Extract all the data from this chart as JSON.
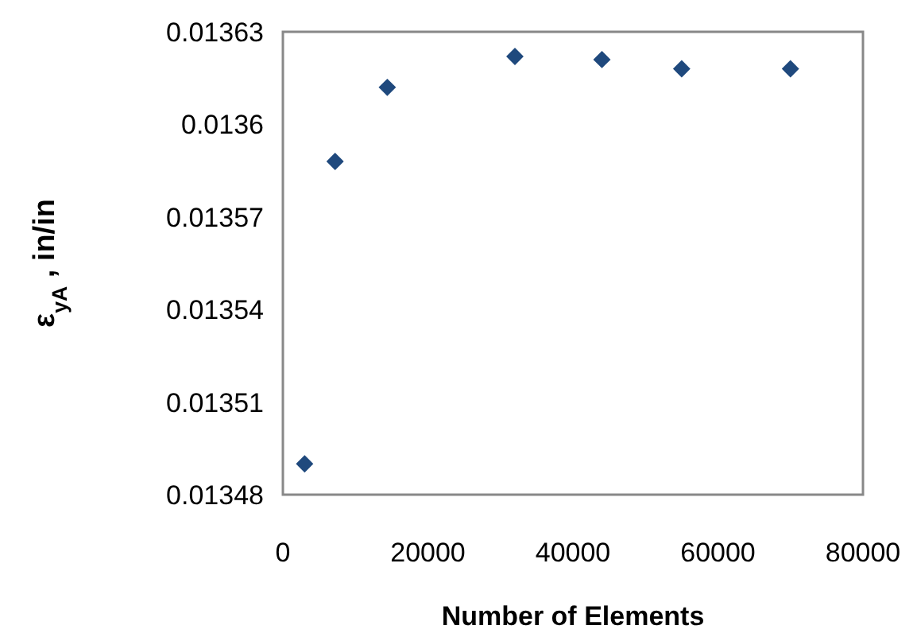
{
  "chart_data": {
    "type": "scatter",
    "xlabel": "Number of Elements",
    "ylabel": "ε$_{yA}$ , in/in",
    "x": [
      3000,
      7200,
      14400,
      32000,
      44000,
      55000,
      70000
    ],
    "values": [
      0.01349,
      0.013588,
      0.013612,
      0.013622,
      0.013621,
      0.013618,
      0.013618
    ],
    "color": "#1f497d",
    "marker": "diamond",
    "xlim": [
      0,
      80000
    ],
    "xticks": [
      0,
      20000,
      40000,
      60000,
      80000
    ],
    "ylim": [
      0.01348,
      0.01363
    ],
    "yticks": [
      0.01348,
      0.01351,
      0.01354,
      0.01357,
      {
        "value": 0.0136,
        "label": "0.0136"
      },
      0.01363
    ],
    "grid": false
  }
}
